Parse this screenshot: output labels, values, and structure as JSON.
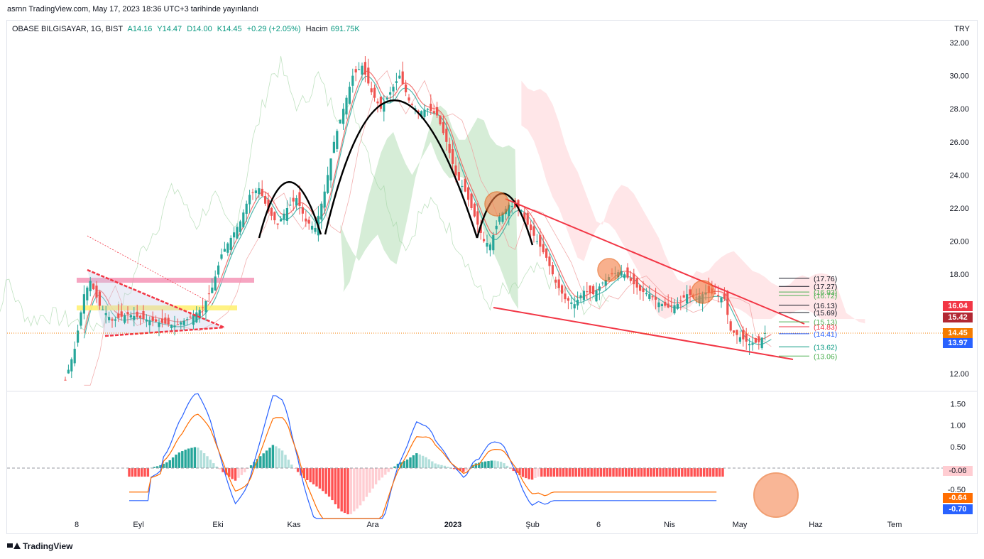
{
  "publisher_line": "asrnn TradingView.com, May 17, 2023 18:36 UTC+3 tarihinde yayınlandı",
  "legend": {
    "symbol": "OBASE BILGISAYAR, 1G, BIST",
    "open": "A14.16",
    "high": "Y14.47",
    "low": "D14.00",
    "close": "K14.45",
    "change": "+0.29 (+2.05%)",
    "volume_label": "Hacim",
    "volume_value": "691.75K"
  },
  "currency": "TRY",
  "brand": "TradingView",
  "colors": {
    "up": "#26a69a",
    "down": "#ef5350",
    "trendline": "#f23645",
    "pattern": "#000000",
    "macd": "#2962ff",
    "signal": "#ff6d00",
    "cloud_bull": "#a5d6a7",
    "cloud_bear": "#ffcdd2",
    "circle": "#f57c42"
  },
  "tags": {
    "t1": "16.04",
    "t2": "15.42",
    "t3": "14.45",
    "t4": "13.97",
    "m1": "-0.06",
    "m2": "-0.64",
    "m3": "-0.70"
  },
  "level_labels": [
    "(17.76)",
    "(17.27)",
    "(16.93)",
    "(16.72)",
    "(16.13)",
    "(15.69)",
    "(15.13)",
    "(14.83)",
    "(14.41)",
    "(13.62)",
    "(13.06)"
  ],
  "chart_data": {
    "type": "candlestick",
    "title": "OBASE BILGISAYAR, 1G, BIST",
    "x_ticks": [
      "8",
      "Eyl",
      "Eki",
      "Kas",
      "Ara",
      "2023",
      "Şub",
      "6",
      "Nis",
      "May",
      "Haz",
      "Tem"
    ],
    "y_ticks": [
      12,
      14,
      16,
      18,
      20,
      22,
      24,
      26,
      28,
      30,
      32
    ],
    "ylim": [
      11.5,
      32.5
    ],
    "macd_ticks": [
      "1.50",
      "1.00",
      "0.50",
      "-0.50"
    ],
    "macd_ylim": [
      -1.35,
      2.05
    ],
    "price_path": [
      [
        0,
        11.6
      ],
      [
        3,
        13.5
      ],
      [
        6,
        16.8
      ],
      [
        8,
        17.6
      ],
      [
        11,
        16.1
      ],
      [
        15,
        15.2
      ],
      [
        20,
        15.6
      ],
      [
        25,
        15.3
      ],
      [
        30,
        15.1
      ],
      [
        35,
        14.9
      ],
      [
        40,
        15.4
      ],
      [
        44,
        16.0
      ],
      [
        47,
        17.2
      ],
      [
        50,
        19.2
      ],
      [
        53,
        20.2
      ],
      [
        56,
        21.2
      ],
      [
        59,
        22.8
      ],
      [
        62,
        23.2
      ],
      [
        65,
        21.8
      ],
      [
        68,
        21.0
      ],
      [
        71,
        22.0
      ],
      [
        74,
        22.6
      ],
      [
        77,
        21.2
      ],
      [
        80,
        20.8
      ],
      [
        83,
        23.0
      ],
      [
        86,
        26.0
      ],
      [
        89,
        28.0
      ],
      [
        92,
        30.0
      ],
      [
        95,
        30.6
      ],
      [
        98,
        29.0
      ],
      [
        101,
        28.0
      ],
      [
        104,
        29.0
      ],
      [
        107,
        30.0
      ],
      [
        110,
        28.5
      ],
      [
        113,
        27.8
      ],
      [
        116,
        28.0
      ],
      [
        119,
        27.6
      ],
      [
        122,
        26.0
      ],
      [
        125,
        24.0
      ],
      [
        128,
        23.0
      ],
      [
        131,
        21.5
      ],
      [
        134,
        20.0
      ],
      [
        136,
        19.8
      ],
      [
        139,
        21.5
      ],
      [
        142,
        22.2
      ],
      [
        145,
        22.0
      ],
      [
        148,
        21.0
      ],
      [
        151,
        20.0
      ],
      [
        154,
        19.0
      ],
      [
        157,
        17.5
      ],
      [
        160,
        16.5
      ],
      [
        163,
        16.2
      ],
      [
        166,
        17.0
      ],
      [
        169,
        16.8
      ],
      [
        172,
        17.5
      ],
      [
        175,
        18.0
      ],
      [
        178,
        18.2
      ],
      [
        181,
        17.6
      ],
      [
        184,
        17.0
      ],
      [
        187,
        16.8
      ],
      [
        190,
        16.3
      ],
      [
        193,
        16.0
      ],
      [
        196,
        16.2
      ],
      [
        199,
        16.8
      ],
      [
        202,
        16.6
      ],
      [
        205,
        16.9
      ],
      [
        208,
        16.8
      ],
      [
        211,
        16.5
      ],
      [
        213,
        14.6
      ],
      [
        216,
        14.2
      ],
      [
        219,
        13.8
      ],
      [
        222,
        13.9
      ],
      [
        224,
        14.45
      ]
    ],
    "macd_hist": [
      [
        44,
        0.0
      ],
      [
        47,
        0.05
      ],
      [
        50,
        0.15
      ],
      [
        53,
        0.35
      ],
      [
        56,
        0.45
      ],
      [
        59,
        0.5
      ],
      [
        62,
        0.3
      ],
      [
        65,
        0.05
      ],
      [
        68,
        -0.15
      ],
      [
        71,
        -0.3
      ],
      [
        74,
        -0.1
      ],
      [
        77,
        0.15
      ],
      [
        80,
        0.35
      ],
      [
        83,
        0.55
      ],
      [
        86,
        0.4
      ],
      [
        89,
        0.05
      ],
      [
        92,
        -0.2
      ],
      [
        95,
        -0.35
      ],
      [
        98,
        -0.5
      ],
      [
        101,
        -0.7
      ],
      [
        104,
        -1.0
      ],
      [
        107,
        -1.1
      ],
      [
        110,
        -0.9
      ],
      [
        113,
        -0.6
      ],
      [
        116,
        -0.3
      ],
      [
        119,
        -0.1
      ],
      [
        122,
        0.1
      ],
      [
        125,
        0.2
      ],
      [
        128,
        0.35
      ],
      [
        131,
        0.25
      ],
      [
        134,
        0.1
      ],
      [
        137,
        0.05
      ],
      [
        140,
        -0.03
      ],
      [
        143,
        -0.1
      ],
      [
        146,
        0.1
      ],
      [
        149,
        0.15
      ],
      [
        152,
        0.18
      ],
      [
        155,
        0.14
      ],
      [
        158,
        -0.05
      ],
      [
        161,
        -0.2
      ],
      [
        164,
        -0.28
      ],
      [
        166,
        -0.2
      ]
    ]
  }
}
